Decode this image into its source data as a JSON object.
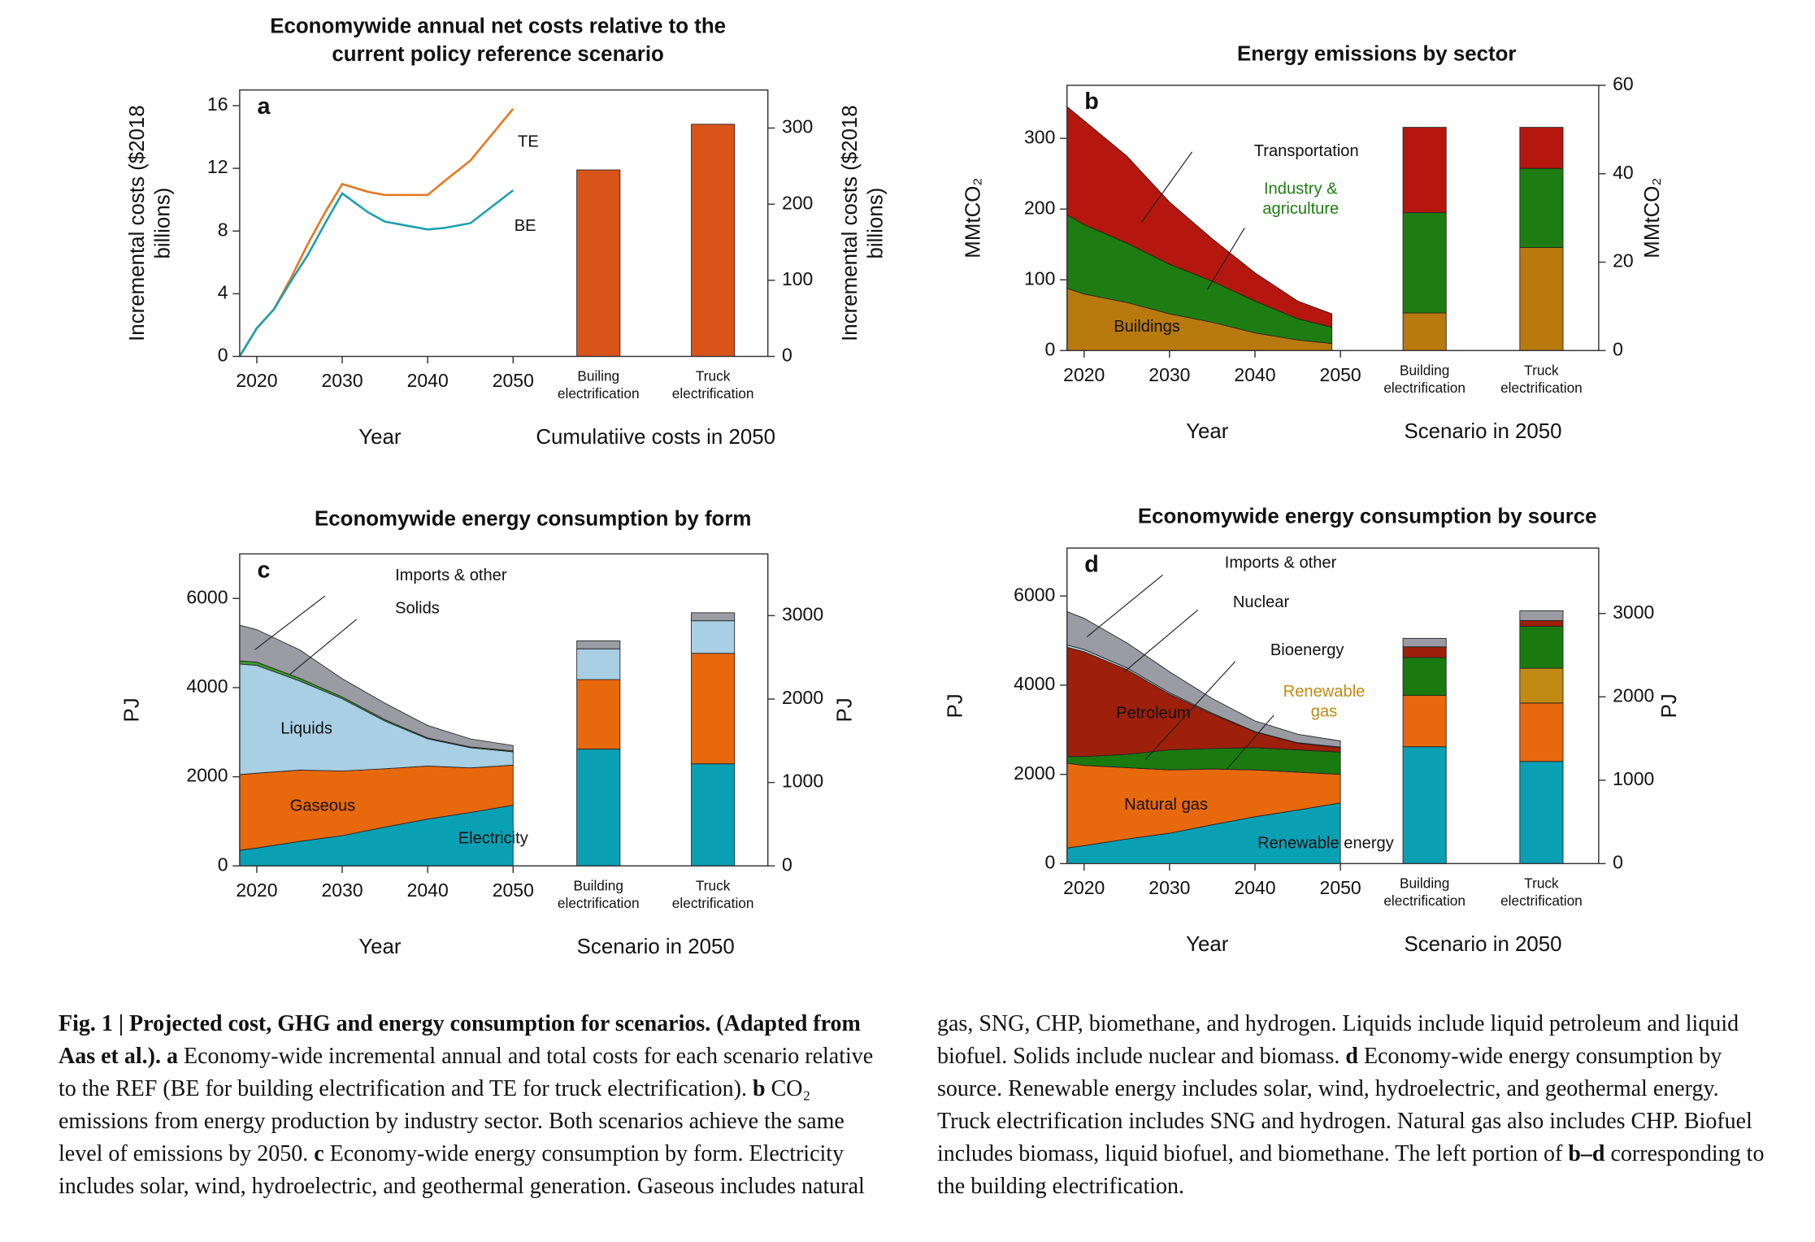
{
  "chart_data": [
    {
      "type": "line",
      "panel": "a",
      "title": "Economywide annual net costs relative to the current policy reference scenario",
      "x": [
        2018,
        2020,
        2022,
        2024,
        2026,
        2028,
        2030,
        2033,
        2035,
        2040,
        2042,
        2045,
        2050
      ],
      "xlim": [
        2018,
        2050
      ],
      "xticks": [
        2020,
        2030,
        2040,
        2050
      ],
      "ylim": [
        0,
        17
      ],
      "yticks": [
        0,
        4,
        8,
        12,
        16
      ],
      "y2lim": [
        0,
        350
      ],
      "y2ticks": [
        0,
        100,
        200,
        300
      ],
      "ylabel": "Incremental costs ($2018 billions)",
      "y2label": "Incremental costs ($2018 billions)",
      "xlabel": "Year",
      "bar_xlabel": "Cumulatiive costs in 2050",
      "series": [
        {
          "name": "TE",
          "color": "#e8761e",
          "values": [
            0,
            1.8,
            3,
            5,
            7.2,
            9.2,
            11,
            10.5,
            10.3,
            10.3,
            11.2,
            12.5,
            15.8
          ]
        },
        {
          "name": "BE",
          "color": "#1aa0b0",
          "values": [
            0,
            1.8,
            3,
            4.8,
            6.5,
            8.5,
            10.4,
            9.2,
            8.6,
            8.1,
            8.2,
            8.5,
            10.6
          ]
        }
      ],
      "bar_categories": [
        "Builing electrification",
        "Truck electrification"
      ],
      "bar_values": [
        245,
        305
      ],
      "bar_color": "#d9541a",
      "bars_axis": "y2"
    },
    {
      "type": "area",
      "panel": "b",
      "title": "Energy emissions by sector",
      "x": [
        2018,
        2020,
        2025,
        2030,
        2035,
        2040,
        2045,
        2049
      ],
      "xlim": [
        2018,
        2050
      ],
      "xticks": [
        2020,
        2030,
        2040,
        2050
      ],
      "ylim": [
        0,
        375
      ],
      "yticks": [
        0,
        100,
        200,
        300
      ],
      "y2lim": [
        0,
        60
      ],
      "y2ticks": [
        0,
        20,
        40,
        60
      ],
      "ylabel": "MMtCO₂",
      "y2label": "MMtCO₂",
      "xlabel": "Year",
      "bar_xlabel": "Scenario in 2050",
      "bar_categories": [
        "Building electrification",
        "Truck electrification"
      ],
      "bars_axis": "y2",
      "series": [
        {
          "name": "Buildings",
          "color": "#b8790f",
          "values": [
            88,
            80,
            68,
            52,
            40,
            25,
            15,
            10
          ],
          "scenario_values": [
            8.5,
            23.3
          ]
        },
        {
          "name": "Industry & agriculture",
          "color": "#1e7d12",
          "values": [
            104,
            98,
            84,
            70,
            58,
            45,
            30,
            23
          ],
          "scenario_values": [
            22.7,
            17.9
          ]
        },
        {
          "name": "Transportation",
          "color": "#b5170e",
          "values": [
            153,
            147,
            123,
            88,
            60,
            40,
            25,
            19
          ],
          "scenario_values": [
            19.3,
            9.3
          ]
        }
      ]
    },
    {
      "type": "area",
      "panel": "c",
      "title": "Economywide energy consumption by form",
      "x": [
        2018,
        2020,
        2025,
        2030,
        2035,
        2040,
        2045,
        2050
      ],
      "xlim": [
        2018,
        2050
      ],
      "xticks": [
        2020,
        2030,
        2040,
        2050
      ],
      "ylim": [
        0,
        7000
      ],
      "yticks": [
        0,
        2000,
        4000,
        6000
      ],
      "y2lim": [
        0,
        3740
      ],
      "y2ticks": [
        0,
        1000,
        2000,
        3000
      ],
      "ylabel": "PJ",
      "y2label": "PJ",
      "xlabel": "Year",
      "bar_xlabel": "Scenario in 2050",
      "bar_categories": [
        "Building electrification",
        "Truck electrification"
      ],
      "series": [
        {
          "name": "Electricity",
          "color": "#0aa0b4",
          "values": [
            350,
            400,
            550,
            680,
            870,
            1050,
            1200,
            1360
          ],
          "scenario_values": [
            2620,
            2290
          ]
        },
        {
          "name": "Gaseous",
          "color": "#e8680c",
          "values": [
            1700,
            1680,
            1600,
            1450,
            1310,
            1190,
            1000,
            900
          ],
          "scenario_values": [
            1560,
            2480
          ]
        },
        {
          "name": "Liquids",
          "color": "#a8cfe3",
          "values": [
            2480,
            2420,
            2000,
            1620,
            1070,
            610,
            450,
            300
          ],
          "scenario_values": [
            690,
            730
          ]
        },
        {
          "name": "Solids",
          "color": "#3aa02a",
          "values": [
            70,
            70,
            60,
            40,
            30,
            20,
            20,
            20
          ],
          "scenario_values": [
            null,
            null
          ]
        },
        {
          "name": "Imports & other",
          "color": "#9b9ba3",
          "values": [
            800,
            730,
            640,
            410,
            370,
            280,
            180,
            120
          ],
          "scenario_values": [
            180,
            180
          ]
        }
      ]
    },
    {
      "type": "area",
      "panel": "d",
      "title": "Economywide energy consumption by source",
      "x": [
        2018,
        2020,
        2025,
        2030,
        2035,
        2040,
        2045,
        2050
      ],
      "xlim": [
        2018,
        2050
      ],
      "xticks": [
        2020,
        2030,
        2040,
        2050
      ],
      "ylim": [
        0,
        7075
      ],
      "yticks": [
        0,
        2000,
        4000,
        6000
      ],
      "y2lim": [
        0,
        3785
      ],
      "y2ticks": [
        0,
        1000,
        2000,
        3000
      ],
      "ylabel": "PJ",
      "y2label": "PJ",
      "xlabel": "Year",
      "bar_xlabel": "Scenario in 2050",
      "bar_categories": [
        "Building electrification",
        "Truck electrification"
      ],
      "series": [
        {
          "name": "Renewable energy",
          "color": "#0aa0b4",
          "values": [
            350,
            400,
            550,
            680,
            870,
            1050,
            1200,
            1360
          ],
          "scenario_values": [
            2620,
            2290
          ]
        },
        {
          "name": "Natural gas",
          "color": "#e8680c",
          "values": [
            1900,
            1800,
            1600,
            1420,
            1250,
            1050,
            850,
            640
          ],
          "scenario_values": [
            1150,
            1310
          ]
        },
        {
          "name": "Renewable gas",
          "color": "#c18a12",
          "values": [
            null,
            null,
            null,
            null,
            null,
            null,
            null,
            null
          ],
          "scenario_values": [
            null,
            780
          ]
        },
        {
          "name": "Bioenergy",
          "color": "#1a7a10",
          "values": [
            150,
            200,
            300,
            450,
            460,
            500,
            500,
            500
          ],
          "scenario_values": [
            850,
            940
          ]
        },
        {
          "name": "Petroleum",
          "color": "#9e1f0a",
          "values": [
            2450,
            2350,
            1900,
            1250,
            770,
            350,
            150,
            100
          ],
          "scenario_values": [
            240,
            130
          ]
        },
        {
          "name": "Nuclear",
          "color": "#b0d8ea",
          "values": [
            50,
            50,
            40,
            30,
            20,
            10,
            10,
            10
          ],
          "scenario_values": [
            null,
            null
          ]
        },
        {
          "name": "Imports & other",
          "color": "#9b9ba3",
          "values": [
            750,
            700,
            560,
            470,
            330,
            240,
            190,
            140
          ],
          "scenario_values": [
            190,
            220
          ]
        }
      ]
    }
  ],
  "caption": {
    "title": "Fig. 1 | Projected cost, GHG and energy consumption for scenarios. (Adapted from Aas et al.).",
    "parts": [
      {
        "label": "a",
        "text": "Economy-wide incremental annual and total costs for each scenario relative to the REF (BE for building electrification and TE for truck electrification)."
      },
      {
        "label": "b",
        "text": "CO₂ emissions from energy production by industry sector. Both scenarios achieve the same level of emissions by 2050."
      },
      {
        "label": "c",
        "text": "Economy-wide energy consumption by form. Electricity includes solar, wind, hydroelectric, and geothermal generation. Gaseous includes natural gas, SNG, CHP, biomethane, and hydrogen. Liquids include liquid petroleum and liquid biofuel. Solids include nuclear and biomass."
      },
      {
        "label": "d",
        "text": "Economy-wide energy consumption by source. Renewable energy includes solar, wind, hydroelectric, and geothermal energy. Truck electrification includes SNG and hydrogen. Natural gas also includes CHP. Biofuel includes biomass, liquid biofuel, and biomethane. The left portion of"
      },
      {
        "label": "b–d",
        "text": "corresponding to the building electrification."
      }
    ]
  }
}
